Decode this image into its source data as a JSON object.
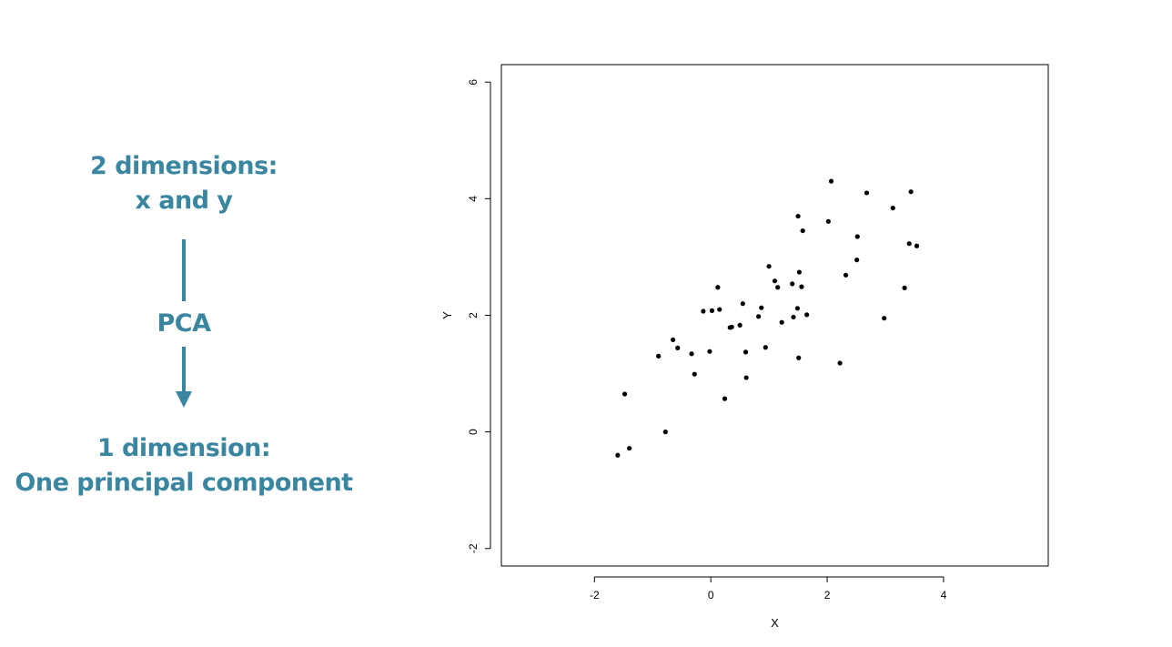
{
  "diagram": {
    "top_line1": "2 dimensions:",
    "top_line2": "x and y",
    "middle": "PCA",
    "bottom_line1": "1 dimension:",
    "bottom_line2": "One principal component",
    "color": "#3a86a0"
  },
  "chart_data": {
    "type": "scatter",
    "xlabel": "X",
    "ylabel": "Y",
    "xlim": [
      -3.6,
      5.8
    ],
    "ylim": [
      -2.3,
      6.3
    ],
    "xticks": [
      -2,
      0,
      2,
      4
    ],
    "yticks": [
      -2,
      0,
      2,
      4,
      6
    ],
    "grid": false,
    "legend": "none",
    "point_color": "#000000",
    "points": [
      [
        -1.6,
        -0.4
      ],
      [
        -1.4,
        -0.28
      ],
      [
        -1.48,
        0.65
      ],
      [
        -0.78,
        0.0
      ],
      [
        -0.9,
        1.3
      ],
      [
        -0.65,
        1.58
      ],
      [
        -0.57,
        1.44
      ],
      [
        -0.33,
        1.34
      ],
      [
        -0.28,
        0.99
      ],
      [
        -0.02,
        1.38
      ],
      [
        -0.13,
        2.07
      ],
      [
        0.02,
        2.08
      ],
      [
        0.12,
        2.48
      ],
      [
        0.15,
        2.1
      ],
      [
        0.24,
        0.57
      ],
      [
        0.33,
        1.79
      ],
      [
        0.36,
        1.8
      ],
      [
        0.5,
        1.83
      ],
      [
        0.55,
        2.2
      ],
      [
        0.6,
        1.37
      ],
      [
        0.61,
        0.93
      ],
      [
        0.82,
        1.98
      ],
      [
        0.87,
        2.13
      ],
      [
        0.94,
        1.45
      ],
      [
        1.0,
        2.84
      ],
      [
        1.1,
        2.59
      ],
      [
        1.15,
        2.48
      ],
      [
        1.22,
        1.88
      ],
      [
        1.4,
        2.54
      ],
      [
        1.42,
        1.97
      ],
      [
        1.49,
        2.12
      ],
      [
        1.5,
        3.7
      ],
      [
        1.51,
        1.27
      ],
      [
        1.52,
        2.74
      ],
      [
        1.56,
        2.49
      ],
      [
        1.58,
        3.45
      ],
      [
        1.65,
        2.01
      ],
      [
        2.02,
        3.61
      ],
      [
        2.07,
        4.3
      ],
      [
        2.22,
        1.18
      ],
      [
        2.32,
        2.69
      ],
      [
        2.51,
        2.95
      ],
      [
        2.52,
        3.35
      ],
      [
        2.68,
        4.1
      ],
      [
        2.98,
        1.95
      ],
      [
        3.13,
        3.84
      ],
      [
        3.33,
        2.47
      ],
      [
        3.41,
        3.23
      ],
      [
        3.44,
        4.12
      ],
      [
        3.54,
        3.19
      ]
    ]
  }
}
